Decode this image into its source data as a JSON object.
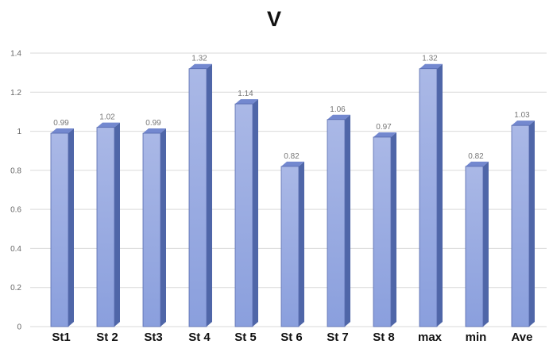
{
  "chart_data": {
    "type": "bar",
    "title": "V",
    "xlabel": "",
    "ylabel": "",
    "categories": [
      "St1",
      "St 2",
      "St3",
      "St 4",
      "St 5",
      "St 6",
      "St 7",
      "St 8",
      "max",
      "min",
      "Ave"
    ],
    "values": [
      0.99,
      1.02,
      0.99,
      1.32,
      1.14,
      0.82,
      1.06,
      0.97,
      1.32,
      0.82,
      1.03
    ],
    "data_labels": [
      "0.99",
      "1.02",
      "0.99",
      "1.32",
      "1.14",
      "0.82",
      "1.06",
      "0.97",
      "1.32",
      "0.82",
      "1.03"
    ],
    "ylim": [
      0,
      1.4
    ],
    "yticks": [
      "0",
      "0.2",
      "0.4",
      "0.6",
      "0.8",
      "1",
      "1.2",
      "1.4"
    ],
    "grid": true,
    "legend": "none",
    "colors": {
      "bar_front_top": "#aab8e6",
      "bar_front_bottom": "#8a9fdd",
      "bar_side": "#4f66a8",
      "bar_top": "#7388cf",
      "bar_edge": "#5569ad",
      "grid": "#d9d9d9"
    }
  }
}
